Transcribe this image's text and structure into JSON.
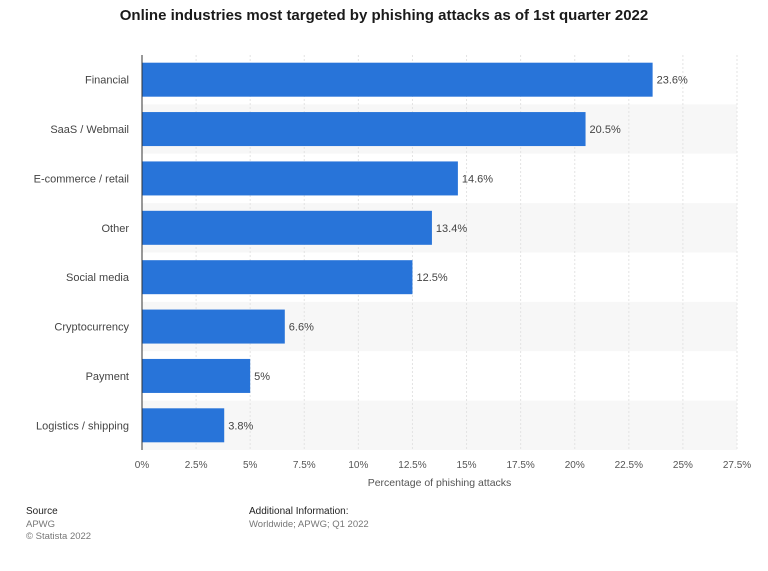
{
  "chart_data": {
    "type": "bar",
    "orientation": "horizontal",
    "title": "Online industries most targeted by phishing attacks as of 1st quarter 2022",
    "categories": [
      "Financial",
      "SaaS / Webmail",
      "E-commerce / retail",
      "Other",
      "Social media",
      "Cryptocurrency",
      "Payment",
      "Logistics / shipping"
    ],
    "values": [
      23.6,
      20.5,
      14.6,
      13.4,
      12.5,
      6.6,
      5,
      3.8
    ],
    "value_labels": [
      "23.6%",
      "20.5%",
      "14.6%",
      "13.4%",
      "12.5%",
      "6.6%",
      "5%",
      "3.8%"
    ],
    "xlabel": "Percentage of phishing attacks",
    "ylabel": "",
    "xlim": [
      0,
      27.5
    ],
    "x_ticks": [
      0,
      2.5,
      5,
      7.5,
      10,
      12.5,
      15,
      17.5,
      20,
      22.5,
      25,
      27.5
    ],
    "x_tick_labels": [
      "0%",
      "2.5%",
      "5%",
      "7.5%",
      "10%",
      "12.5%",
      "15%",
      "17.5%",
      "20%",
      "22.5%",
      "25%",
      "27.5%"
    ],
    "grid": true,
    "bar_color": "#2874d9"
  },
  "footer": {
    "source_heading": "Source",
    "source_name": "APWG",
    "copyright": "© Statista 2022",
    "info_heading": "Additional Information:",
    "info_text": "Worldwide; APWG; Q1 2022"
  }
}
